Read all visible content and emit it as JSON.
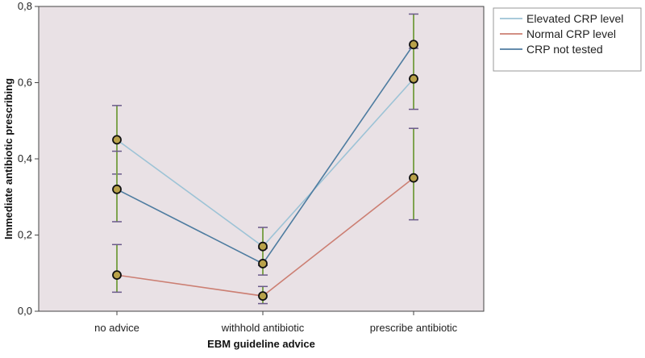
{
  "chart_data": {
    "type": "line",
    "title": "",
    "xlabel": "EBM guideline advice",
    "ylabel": "Immediate antibiotic prescribing",
    "categories": [
      "no advice",
      "withhold antibiotic",
      "prescribe antibiotic"
    ],
    "ylim": [
      0,
      0.8
    ],
    "yticks": [
      0.0,
      0.2,
      0.4,
      0.6,
      0.8
    ],
    "ytick_labels": [
      "0,0",
      "0,2",
      "0,4",
      "0,6",
      "0,8"
    ],
    "grid": false,
    "legend_position": "top-right (outside plot)",
    "plot_background": "#e9e1e5",
    "error_bar_color": "#7fa34f",
    "error_cap_color": "#6a5a8a",
    "marker_edge_color": "#111111",
    "marker_fill_color": "#b9a24a",
    "series": [
      {
        "name": "Elevated CRP level",
        "color": "#9dc3d6",
        "values": [
          0.45,
          0.17,
          0.61
        ],
        "error_low": [
          0.36,
          0.12,
          0.53
        ],
        "error_high": [
          0.54,
          0.22,
          0.69
        ]
      },
      {
        "name": "Normal CRP level",
        "color": "#cc7f73",
        "values": [
          0.095,
          0.04,
          0.35
        ],
        "error_low": [
          0.05,
          0.02,
          0.24
        ],
        "error_high": [
          0.175,
          0.065,
          0.48
        ]
      },
      {
        "name": "CRP not tested",
        "color": "#4e7ca0",
        "values": [
          0.32,
          0.125,
          0.7
        ],
        "error_low": [
          0.235,
          0.095,
          0.61
        ],
        "error_high": [
          0.42,
          0.165,
          0.78
        ]
      }
    ]
  }
}
